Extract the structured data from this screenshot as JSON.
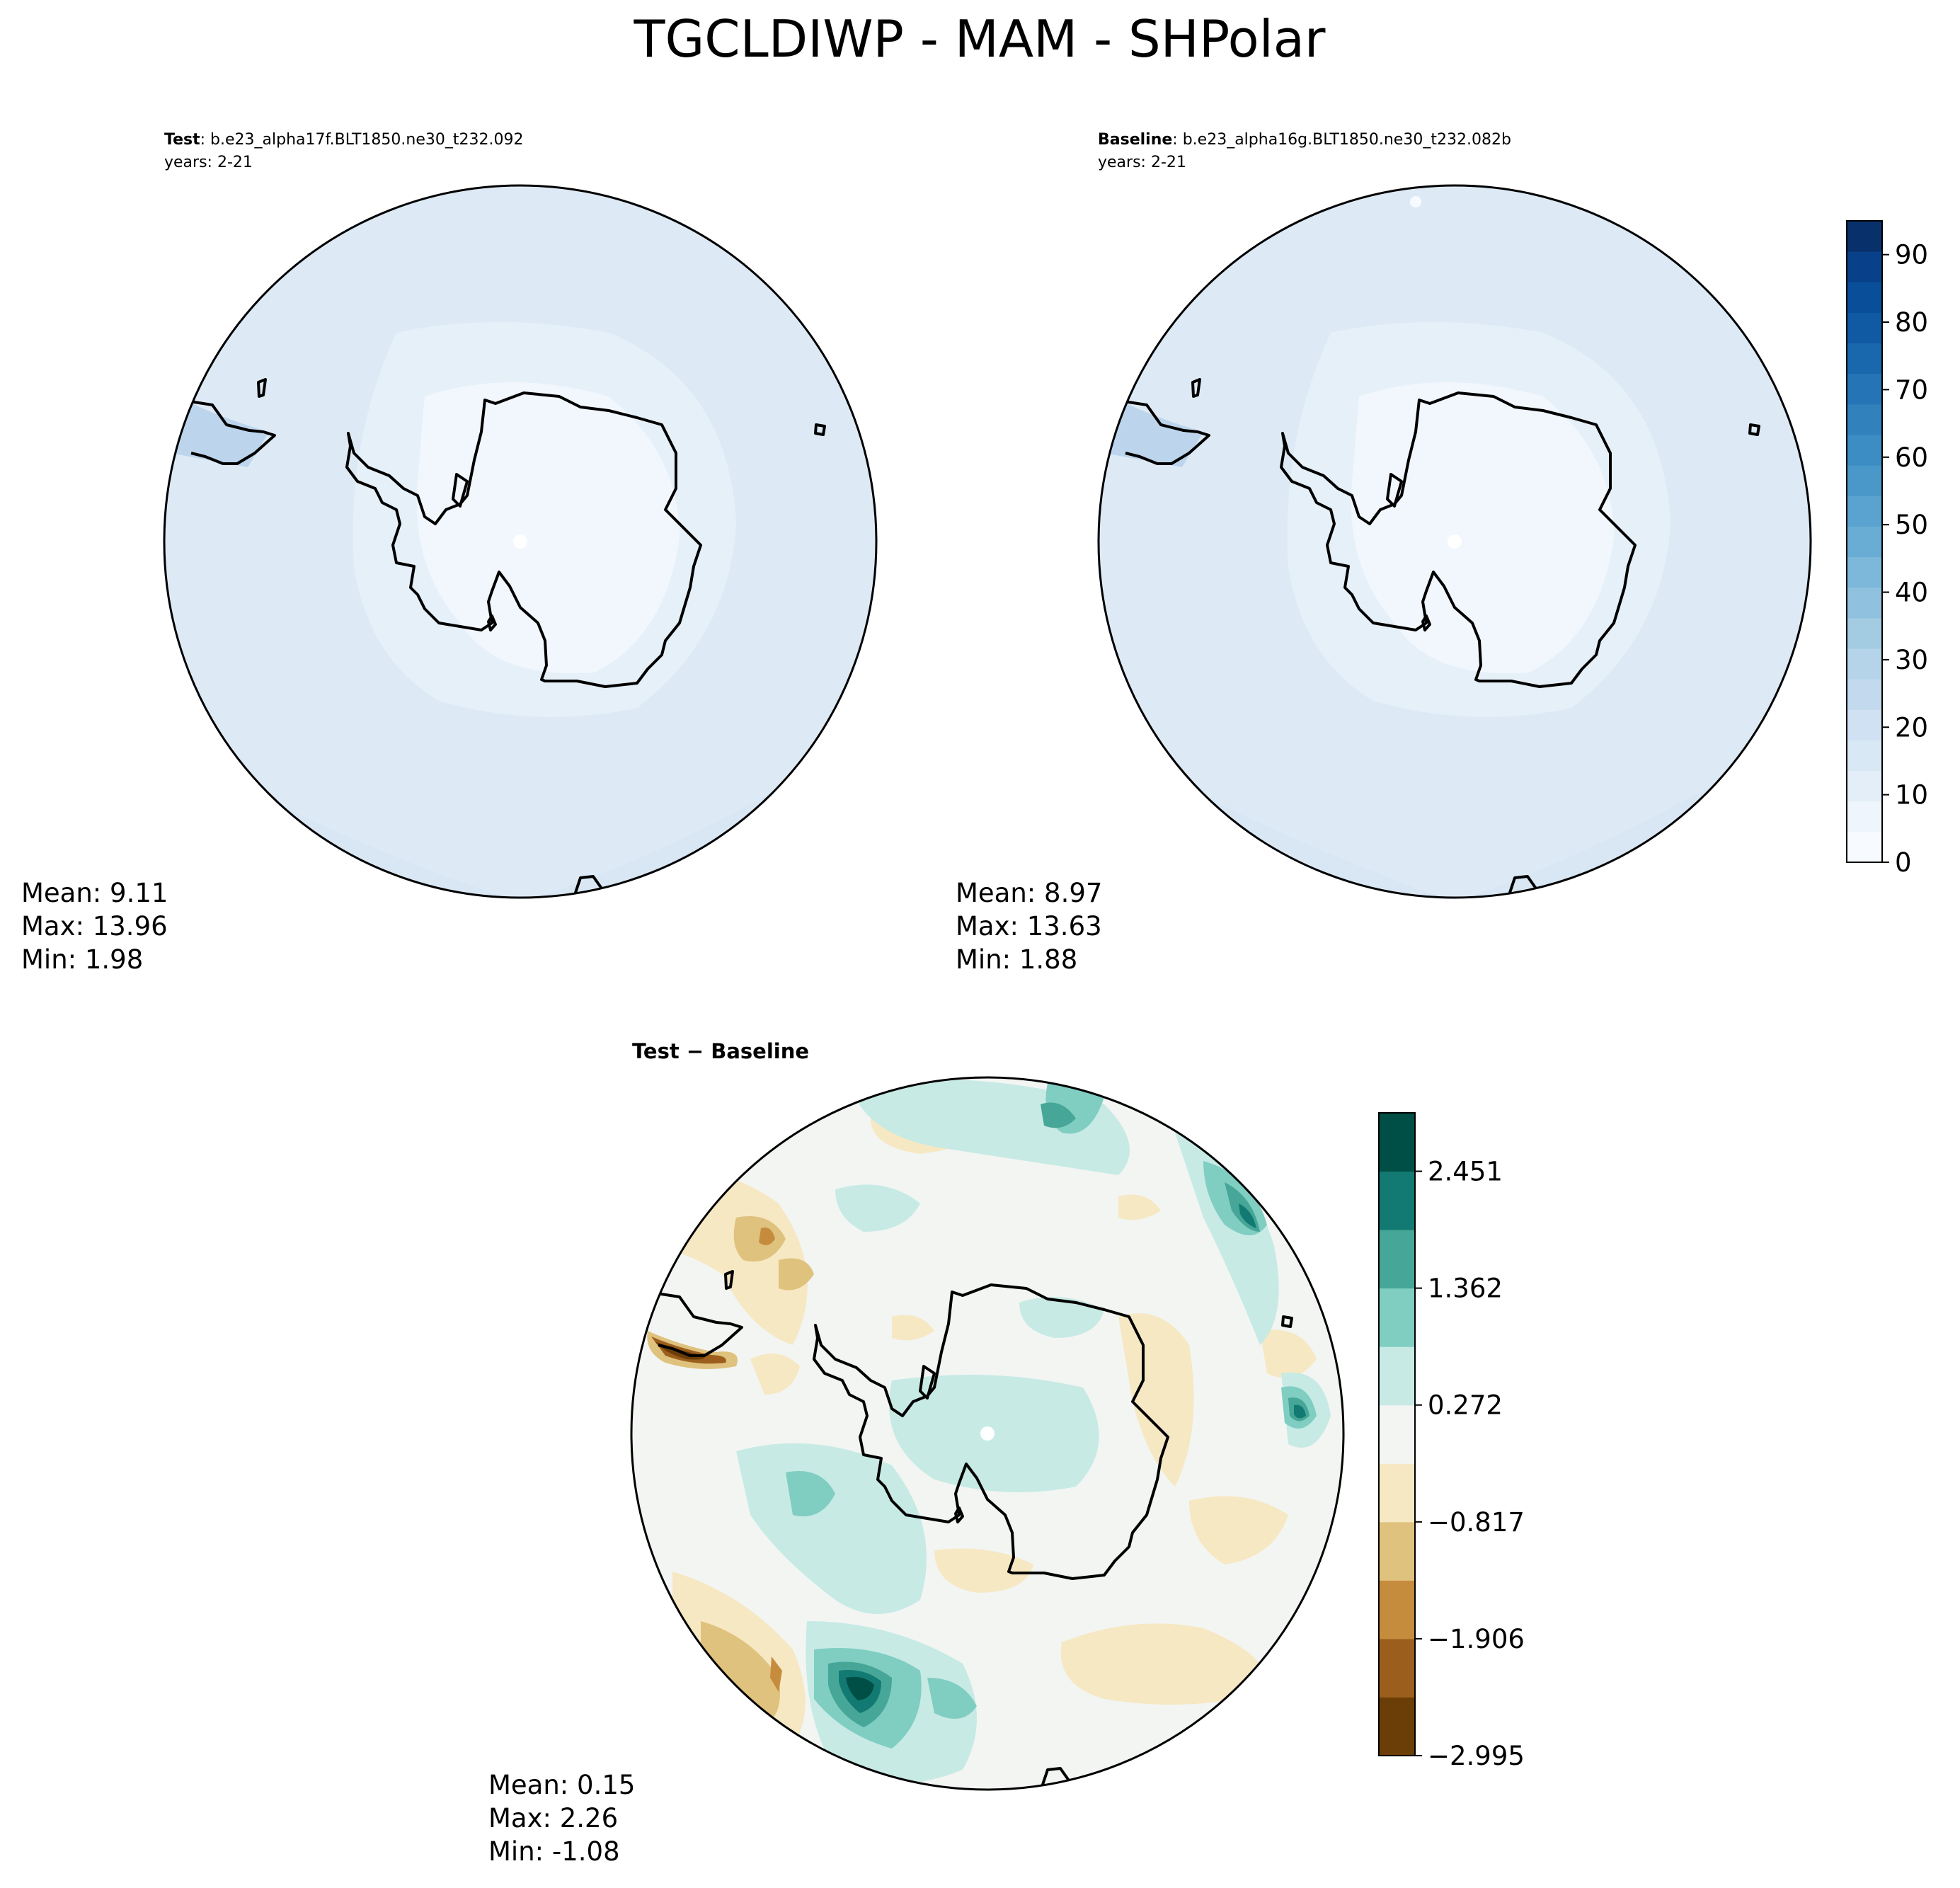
{
  "figure": {
    "title": "TGCLDIWP - MAM - SHPolar"
  },
  "panels": {
    "test": {
      "label": "Test",
      "case": ": b.e23_alpha17f.BLT1850.ne30_t232.092",
      "years": "years: 2-21",
      "stats": {
        "mean": "Mean:  9.11",
        "max": "Max: 13.96",
        "min": "Min:  1.98"
      }
    },
    "baseline": {
      "label": "Baseline",
      "case": ": b.e23_alpha16g.BLT1850.ne30_t232.082b",
      "years": "years: 2-21",
      "stats": {
        "mean": "Mean:  8.97",
        "max": "Max: 13.63",
        "min": "Min:  1.88"
      }
    },
    "diff": {
      "label": "Test − Baseline",
      "stats": {
        "mean": "Mean:  0.15",
        "max": "Max:  2.26",
        "min": "Min: -1.08"
      }
    }
  },
  "colorbars": {
    "field": {
      "ticks": [
        "0",
        "10",
        "20",
        "30",
        "40",
        "50",
        "60",
        "70",
        "80",
        "90"
      ],
      "range": [
        0,
        95
      ],
      "colors": [
        "#f7fbff",
        "#eef5fc",
        "#e3eef9",
        "#d9e8f5",
        "#cfe1f2",
        "#c3daee",
        "#b5d4e9",
        "#a3cce3",
        "#90c1de",
        "#7db8da",
        "#69add5",
        "#5aa2cf",
        "#4a98c9",
        "#3c8dc3",
        "#3181bd",
        "#2574b6",
        "#1967ad",
        "#0f5aa3",
        "#084e98",
        "#08418a",
        "#08306b"
      ]
    },
    "diff": {
      "ticks": [
        "2.451",
        "1.362",
        "0.272",
        "−0.817",
        "−1.906",
        "−2.995"
      ],
      "colors": [
        "#6b3d07",
        "#9b5e1c",
        "#c68c3d",
        "#dfc27d",
        "#f6e8c3",
        "#f3f5f3",
        "#c7eae5",
        "#80cdc1",
        "#46a697",
        "#127a72",
        "#004f46"
      ]
    }
  }
}
